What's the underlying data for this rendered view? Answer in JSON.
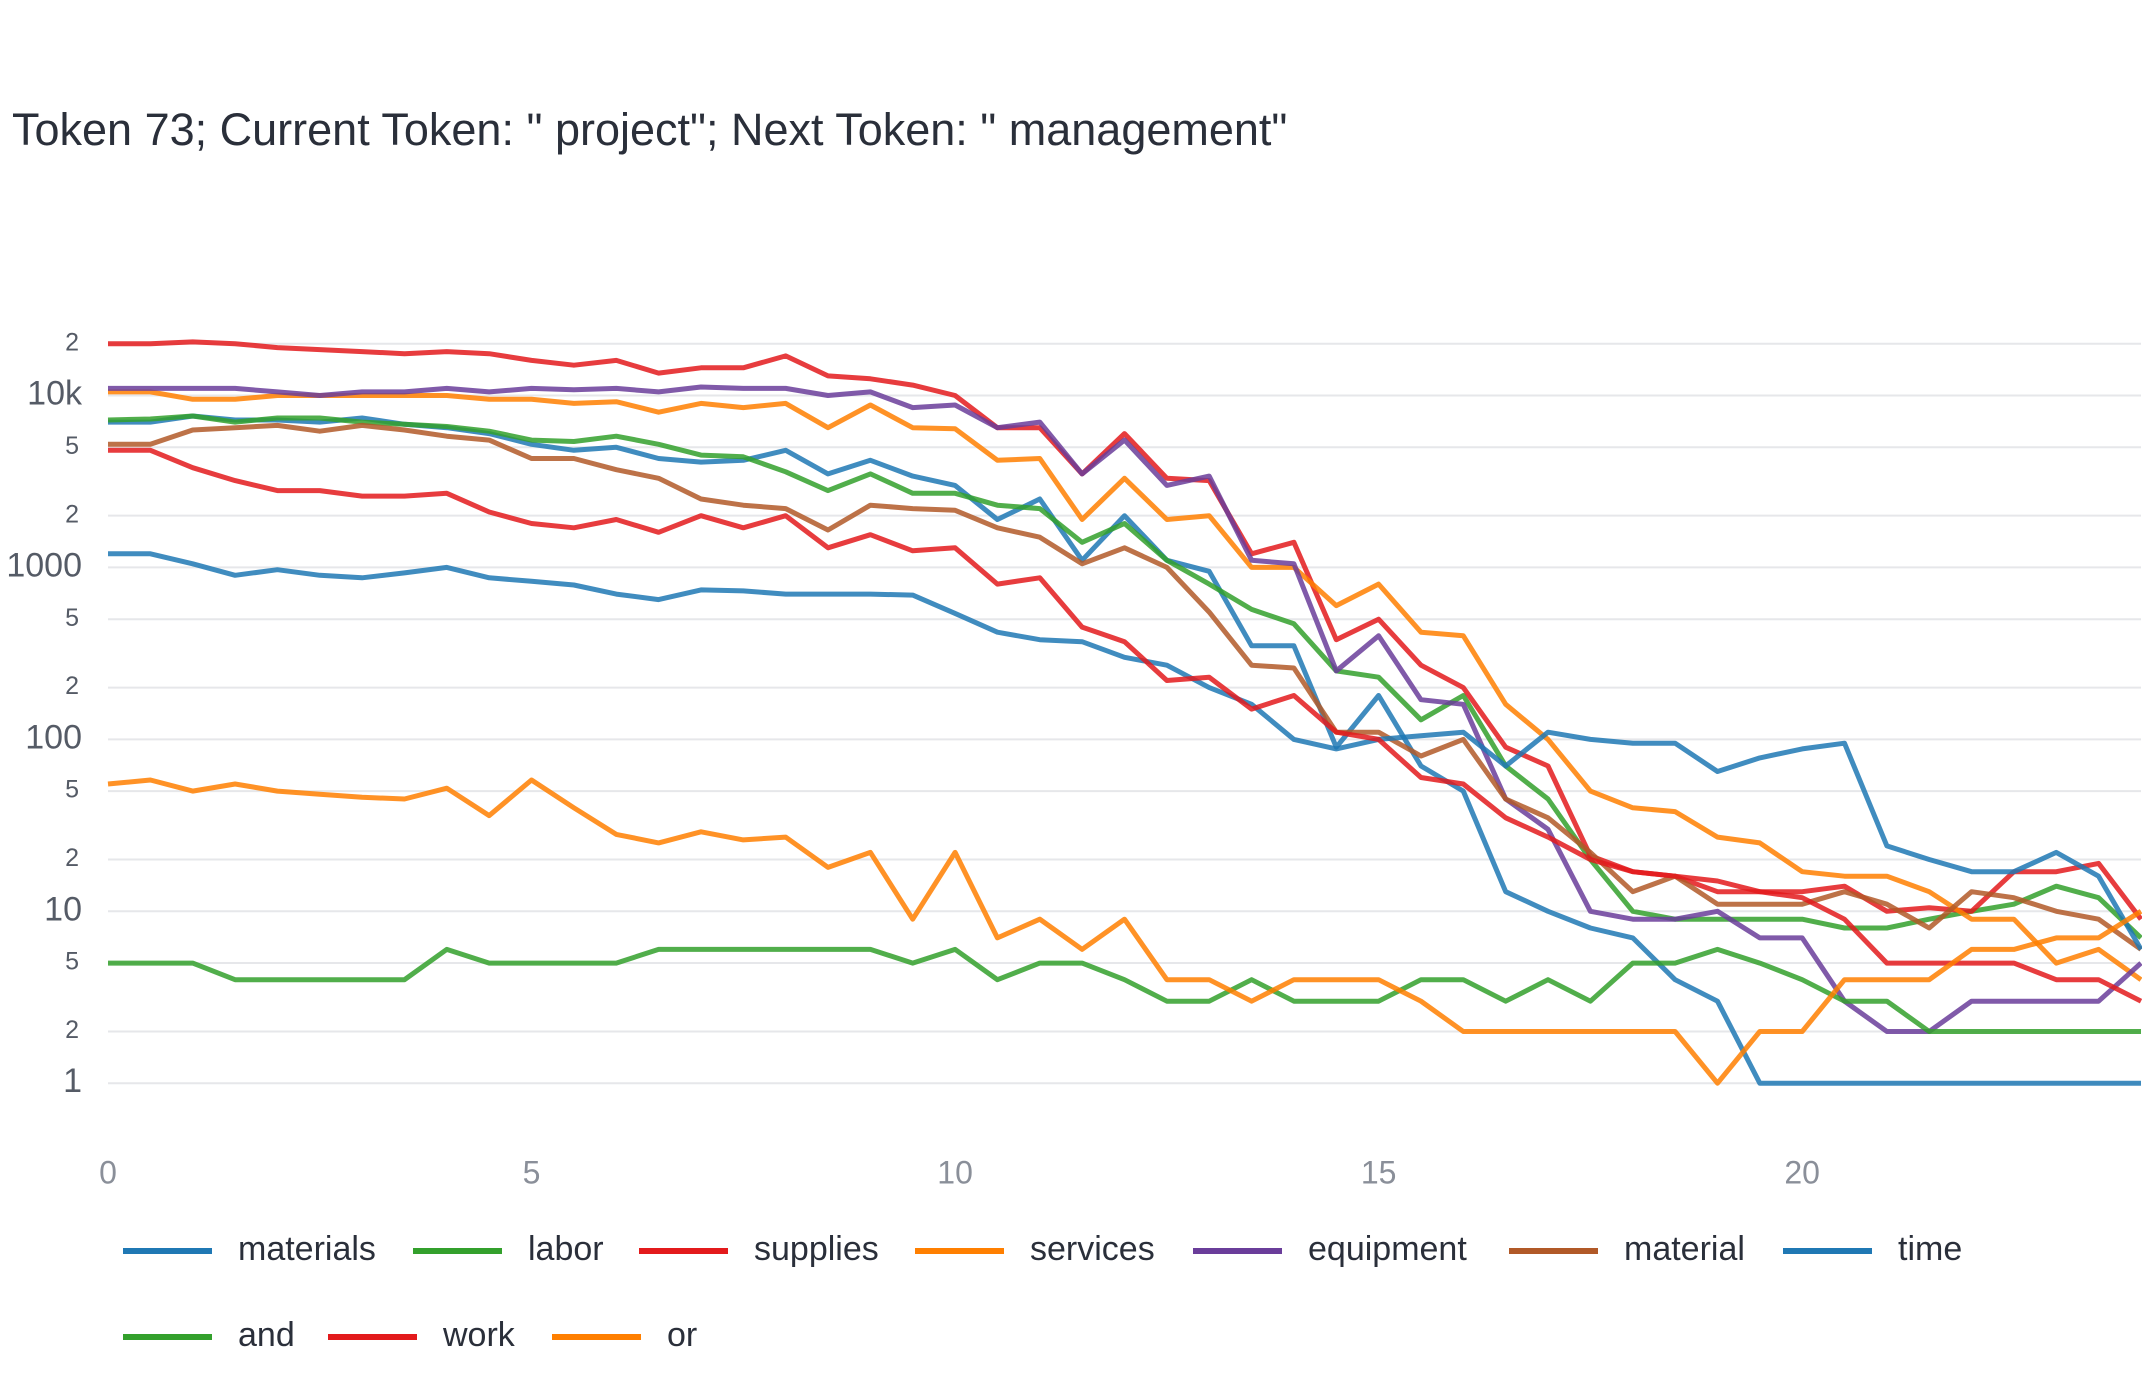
{
  "chart_data": {
    "type": "line",
    "title": "Token 73; Current Token: \" project\"; Next Token: \" management\"",
    "log_y": true,
    "grid": true,
    "legend": "bottom",
    "x": [
      0,
      0.5,
      1,
      1.5,
      2,
      2.5,
      3,
      3.5,
      4,
      4.5,
      5,
      5.5,
      6,
      6.5,
      7,
      7.5,
      8,
      8.5,
      9,
      9.5,
      10,
      10.5,
      11,
      11.5,
      12,
      12.5,
      13,
      13.5,
      14,
      14.5,
      15,
      15.5,
      16,
      16.5,
      17,
      17.5,
      18,
      18.5,
      19,
      19.5,
      20,
      20.5,
      21,
      21.5,
      22,
      22.5,
      23,
      23.5,
      24
    ],
    "xlim": [
      0,
      24
    ],
    "xticks": [
      0,
      5,
      10,
      15,
      20
    ],
    "ylim": [
      0.42,
      29000
    ],
    "yticks": [
      1,
      2,
      5,
      10,
      {
        "value": 20,
        "label": "2"
      },
      {
        "value": 50,
        "label": "5"
      },
      100,
      {
        "value": 200,
        "label": "2"
      },
      {
        "value": 500,
        "label": "5"
      },
      1000,
      {
        "value": 2000,
        "label": "2"
      },
      {
        "value": 5000,
        "label": "5"
      },
      {
        "value": 10000,
        "label": "10k"
      },
      {
        "value": 20000,
        "label": "2"
      }
    ],
    "series": [
      {
        "name": "materials",
        "color": "#1f78b4",
        "values": [
          7000,
          7000,
          7600,
          7200,
          7200,
          7000,
          7400,
          6800,
          6500,
          6000,
          5200,
          4800,
          5000,
          4300,
          4100,
          4200,
          4800,
          3500,
          4200,
          3400,
          3000,
          1900,
          2500,
          1100,
          2000,
          1100,
          950,
          350,
          350,
          90,
          180,
          70,
          50,
          13,
          10,
          8,
          7,
          4,
          3,
          1,
          1,
          1,
          1,
          1,
          1,
          1,
          1,
          1,
          1
        ]
      },
      {
        "name": "labor",
        "color": "#33a02c",
        "values": [
          7200,
          7300,
          7600,
          7000,
          7400,
          7400,
          7000,
          6800,
          6600,
          6200,
          5500,
          5400,
          5800,
          5200,
          4500,
          4400,
          3600,
          2800,
          3500,
          2700,
          2700,
          2300,
          2200,
          1400,
          1800,
          1100,
          800,
          570,
          470,
          250,
          230,
          130,
          180,
          70,
          45,
          20,
          10,
          9,
          9,
          9,
          9,
          8,
          8,
          9,
          10,
          11,
          14,
          12,
          7
        ]
      },
      {
        "name": "supplies",
        "color": "#e31a1c",
        "values": [
          20000,
          20000,
          20500,
          20000,
          19000,
          18500,
          18000,
          17500,
          18000,
          17500,
          16000,
          15000,
          16000,
          13500,
          14500,
          14500,
          17000,
          13000,
          12500,
          11500,
          10000,
          6500,
          6500,
          3500,
          6000,
          3300,
          3200,
          1200,
          1400,
          380,
          500,
          270,
          200,
          90,
          70,
          21,
          17,
          16,
          13,
          13,
          13,
          14,
          10,
          10.5,
          10,
          17,
          17,
          19,
          9
        ]
      },
      {
        "name": "services",
        "color": "#ff7f00",
        "values": [
          10500,
          10500,
          9500,
          9500,
          10000,
          10000,
          10000,
          10000,
          10000,
          9500,
          9500,
          9000,
          9200,
          8000,
          9000,
          8500,
          9000,
          6500,
          8800,
          6500,
          6400,
          4200,
          4300,
          1900,
          3300,
          1900,
          2000,
          1000,
          1000,
          600,
          800,
          420,
          400,
          160,
          100,
          50,
          40,
          38,
          27,
          25,
          17,
          16,
          16,
          13,
          9,
          9,
          5,
          6,
          4
        ]
      },
      {
        "name": "equipment",
        "color": "#6a3d9a",
        "values": [
          11000,
          11000,
          11000,
          11000,
          10500,
          10000,
          10500,
          10500,
          11000,
          10500,
          11000,
          10800,
          11000,
          10500,
          11200,
          11000,
          11000,
          10000,
          10500,
          8500,
          8800,
          6500,
          7000,
          3500,
          5500,
          3000,
          3400,
          1100,
          1050,
          250,
          400,
          170,
          160,
          45,
          30,
          10,
          9,
          9,
          10,
          7,
          7,
          3,
          2,
          2,
          3,
          3,
          3,
          3,
          5
        ]
      },
      {
        "name": "material",
        "color": "#b15928",
        "values": [
          5200,
          5200,
          6300,
          6500,
          6700,
          6200,
          6700,
          6300,
          5800,
          5500,
          4300,
          4300,
          3700,
          3300,
          2500,
          2300,
          2200,
          1650,
          2300,
          2200,
          2150,
          1700,
          1500,
          1050,
          1300,
          1000,
          550,
          270,
          260,
          110,
          110,
          80,
          100,
          45,
          35,
          22,
          13,
          16,
          11,
          11,
          11,
          13,
          11,
          8,
          13,
          12,
          10,
          9,
          6
        ]
      },
      {
        "name": "time",
        "color": "#1f78b4",
        "values": [
          1200,
          1200,
          1050,
          900,
          970,
          900,
          870,
          930,
          1000,
          870,
          830,
          790,
          700,
          650,
          740,
          730,
          700,
          700,
          700,
          690,
          540,
          420,
          380,
          370,
          300,
          270,
          200,
          160,
          100,
          88,
          100,
          105,
          110,
          70,
          110,
          100,
          95,
          95,
          65,
          78,
          88,
          95,
          24,
          20,
          17,
          17,
          22,
          16,
          6
        ]
      },
      {
        "name": "and",
        "color": "#33a02c",
        "values": [
          5,
          5,
          5,
          4,
          4,
          4,
          4,
          4,
          6,
          5,
          5,
          5,
          5,
          6,
          6,
          6,
          6,
          6,
          6,
          5,
          6,
          4,
          5,
          5,
          4,
          3,
          3,
          4,
          3,
          3,
          3,
          4,
          4,
          3,
          4,
          3,
          5,
          5,
          6,
          5,
          4,
          3,
          3,
          2,
          2,
          2,
          2,
          2,
          2
        ]
      },
      {
        "name": "work",
        "color": "#e31a1c",
        "values": [
          4800,
          4800,
          3800,
          3200,
          2800,
          2800,
          2600,
          2600,
          2700,
          2100,
          1800,
          1700,
          1900,
          1600,
          2000,
          1700,
          2000,
          1300,
          1550,
          1250,
          1300,
          800,
          870,
          450,
          370,
          220,
          230,
          150,
          180,
          110,
          100,
          60,
          55,
          35,
          27,
          20,
          17,
          16,
          15,
          13,
          12,
          9,
          5,
          5,
          5,
          5,
          4,
          4,
          3
        ]
      },
      {
        "name": "or",
        "color": "#ff7f00",
        "values": [
          55,
          58,
          50,
          55,
          50,
          48,
          46,
          45,
          52,
          36,
          58,
          40,
          28,
          25,
          29,
          26,
          27,
          18,
          22,
          9,
          22,
          7,
          9,
          6,
          9,
          4,
          4,
          3,
          4,
          4,
          4,
          3,
          2,
          2,
          2,
          2,
          2,
          2,
          1,
          2,
          2,
          4,
          4,
          4,
          6,
          6,
          7,
          7,
          10
        ]
      }
    ]
  }
}
